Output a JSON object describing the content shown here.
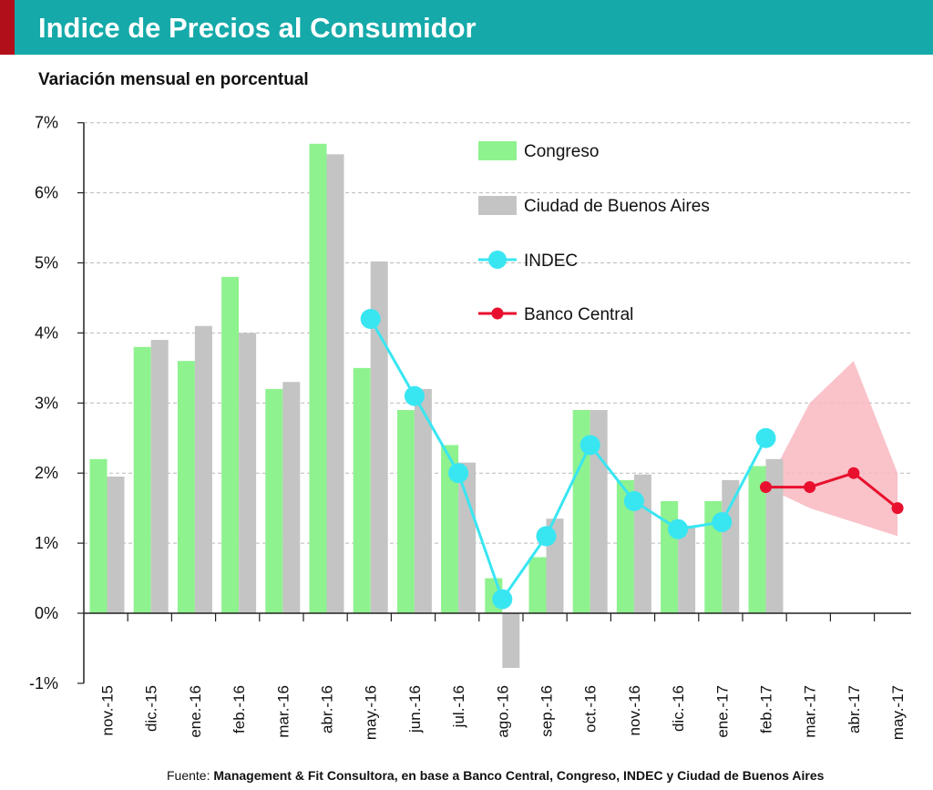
{
  "header": {
    "title": "Indice de Precios al Consumidor"
  },
  "subtitle": "Variación mensual en porcentual",
  "footer": {
    "prefix": "Fuente: ",
    "source": "Management & Fit Consultora, en base a Banco Central, Congreso, INDEC y Ciudad de Buenos Aires"
  },
  "colors": {
    "header_bg": "#15a9a9",
    "header_accent": "#b10f19",
    "congreso": "#8ef28e",
    "ciudad": "#c4c4c4",
    "indec": "#38e6f2",
    "banco_central": "#e8102e",
    "forecast_band": "#f9b7bf"
  },
  "chart_data": {
    "type": "bar",
    "categories": [
      "nov.-15",
      "dic.-15",
      "ene.-16",
      "feb.-16",
      "mar.-16",
      "abr.-16",
      "may.-16",
      "jun.-16",
      "jul.-16",
      "ago.-16",
      "sep.-16",
      "oct.-16",
      "nov.-16",
      "dic.-16",
      "ene.-17",
      "feb.-17",
      "mar.-17",
      "abr.-17",
      "may.-17"
    ],
    "y_tick_labels": [
      "-1%",
      "0%",
      "1%",
      "2%",
      "3%",
      "4%",
      "5%",
      "6%",
      "7%"
    ],
    "ylim": [
      -1,
      7
    ],
    "grid": "horizontal dashed",
    "legend_position": "top-right",
    "series": [
      {
        "name": "Congreso",
        "type": "bar",
        "values": [
          2.2,
          3.8,
          3.6,
          4.8,
          3.2,
          6.7,
          3.5,
          2.9,
          2.4,
          0.5,
          0.8,
          2.9,
          1.9,
          1.6,
          1.6,
          2.1,
          null,
          null,
          null
        ]
      },
      {
        "name": "Ciudad de Buenos Aires",
        "type": "bar",
        "values": [
          1.95,
          3.9,
          4.1,
          4.0,
          3.3,
          6.55,
          5.02,
          3.2,
          2.15,
          -0.78,
          1.35,
          2.9,
          1.98,
          1.25,
          1.9,
          2.2,
          null,
          null,
          null
        ]
      },
      {
        "name": "INDEC",
        "type": "line",
        "values": [
          null,
          null,
          null,
          null,
          null,
          null,
          4.2,
          3.1,
          2.0,
          0.2,
          1.1,
          2.4,
          1.6,
          1.2,
          1.3,
          2.5,
          null,
          null,
          null
        ]
      },
      {
        "name": "Banco Central",
        "type": "line",
        "values": [
          null,
          null,
          null,
          null,
          null,
          null,
          null,
          null,
          null,
          null,
          null,
          null,
          null,
          null,
          null,
          1.8,
          1.8,
          2.0,
          1.5
        ]
      }
    ],
    "forecast_band": {
      "upper": [
        null,
        null,
        null,
        null,
        null,
        null,
        null,
        null,
        null,
        null,
        null,
        null,
        null,
        null,
        null,
        1.8,
        3.0,
        3.6,
        2.0
      ],
      "lower": [
        null,
        null,
        null,
        null,
        null,
        null,
        null,
        null,
        null,
        null,
        null,
        null,
        null,
        null,
        null,
        1.8,
        1.5,
        1.3,
        1.1
      ]
    }
  }
}
